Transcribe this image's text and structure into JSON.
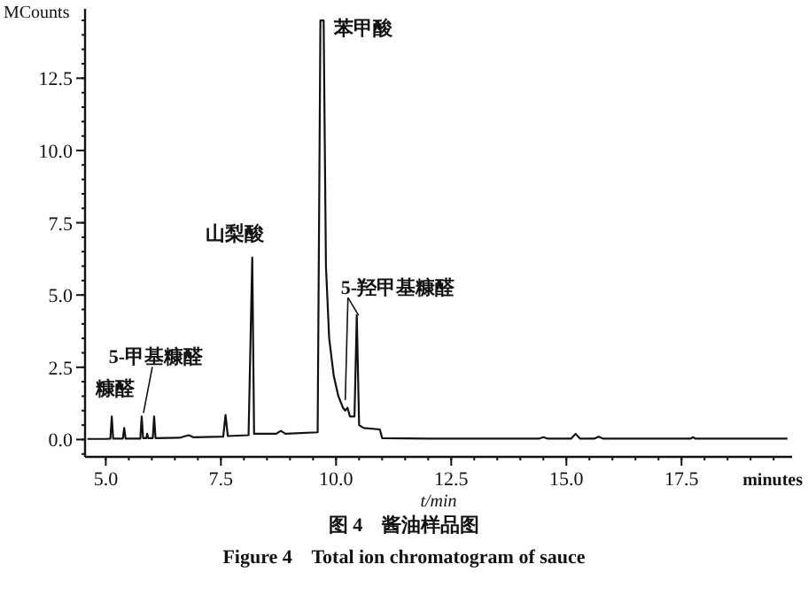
{
  "chart_data": {
    "type": "line",
    "title": "图 4    酱油样品图",
    "subtitle": "Figure 4    Total ion chromatogram of sauce",
    "xlabel": "t/min",
    "ylabel": "MCounts",
    "x2label": "minutes",
    "series": [
      {
        "color": "#111111",
        "x": [
          4.6,
          5.0,
          5.1,
          5.13,
          5.16,
          5.37,
          5.4,
          5.43,
          5.75,
          5.78,
          5.81,
          5.88,
          5.9,
          5.92,
          6.02,
          6.05,
          6.08,
          6.6,
          6.8,
          6.9,
          7.55,
          7.6,
          7.65,
          8.1,
          8.18,
          8.22,
          8.7,
          8.8,
          8.9,
          9.6,
          9.66,
          9.73,
          9.78,
          9.85,
          9.95,
          10.05,
          10.15,
          10.2,
          10.25,
          10.3,
          10.4,
          10.45,
          10.5,
          10.6,
          10.95,
          11.0,
          12.0,
          14.4,
          14.5,
          14.6,
          15.1,
          15.2,
          15.3,
          15.6,
          15.7,
          15.8,
          17.7,
          17.75,
          17.8,
          19.8
        ],
        "values": [
          0.02,
          0.02,
          0.03,
          0.8,
          0.03,
          0.03,
          0.4,
          0.03,
          0.03,
          0.8,
          0.05,
          0.05,
          0.2,
          0.05,
          0.05,
          0.8,
          0.05,
          0.06,
          0.15,
          0.08,
          0.1,
          0.85,
          0.12,
          0.15,
          6.3,
          0.2,
          0.2,
          0.3,
          0.2,
          0.25,
          14.5,
          14.5,
          6,
          3.5,
          2.2,
          1.5,
          1.1,
          1.0,
          1.1,
          0.8,
          0.8,
          4.3,
          0.5,
          0.4,
          0.35,
          0.05,
          0.03,
          0.03,
          0.08,
          0.03,
          0.03,
          0.2,
          0.03,
          0.03,
          0.1,
          0.03,
          0.03,
          0.08,
          0.03,
          0.03
        ]
      }
    ],
    "xlim": [
      4.55,
      19.9
    ],
    "ylim": [
      -0.6,
      14.9
    ],
    "xticks": [
      {
        "value": 5,
        "label": "5.0"
      },
      {
        "value": 7.5,
        "label": "7.5"
      },
      {
        "value": 10,
        "label": "10.0"
      },
      {
        "value": 12.5,
        "label": "12.5"
      },
      {
        "value": 15,
        "label": "15.0"
      },
      {
        "value": 17.5,
        "label": "17.5"
      }
    ],
    "yticks": [
      {
        "value": 0,
        "label": "0.0"
      },
      {
        "value": 2.5,
        "label": "2.5"
      },
      {
        "value": 5,
        "label": "5.0"
      },
      {
        "value": 7.5,
        "label": "7.5"
      },
      {
        "value": 10,
        "label": "10.0"
      },
      {
        "value": 12.5,
        "label": "12.5"
      }
    ],
    "grid": false,
    "marker": "none",
    "line_style": "solid",
    "annotations": [
      {
        "text": "糠醛",
        "x": 5.13,
        "y": 0.8
      },
      {
        "text": "5-甲基糠醛",
        "x": 5.78,
        "y": 0.8
      },
      {
        "text": "山梨酸",
        "x": 8.18,
        "y": 6.3
      },
      {
        "text": "苯甲酸",
        "x": 9.73,
        "y": 14.5
      },
      {
        "text": "5-羟甲基糠醛",
        "x": 10.45,
        "y": 4.3
      }
    ]
  }
}
